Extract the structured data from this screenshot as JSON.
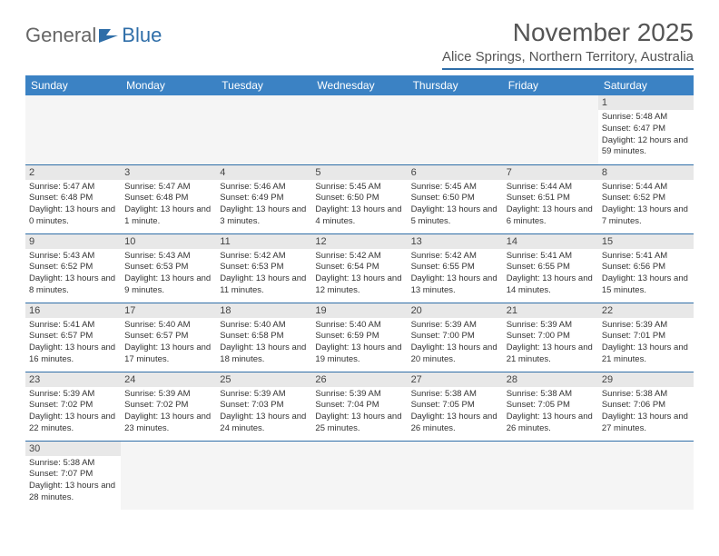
{
  "brand": {
    "part1": "General",
    "part2": "Blue"
  },
  "title": "November 2025",
  "location": "Alice Springs, Northern Territory, Australia",
  "colors": {
    "header_bg": "#3b82c4",
    "header_text": "#ffffff",
    "rule": "#2f6ea8",
    "daybar": "#e8e8e8",
    "text": "#333333",
    "title": "#555555"
  },
  "weekdays": [
    "Sunday",
    "Monday",
    "Tuesday",
    "Wednesday",
    "Thursday",
    "Friday",
    "Saturday"
  ],
  "layout": {
    "first_weekday_index": 6,
    "days_in_month": 30,
    "weeks": 6
  },
  "days": {
    "1": {
      "sunrise": "5:48 AM",
      "sunset": "6:47 PM",
      "daylight": "12 hours and 59 minutes."
    },
    "2": {
      "sunrise": "5:47 AM",
      "sunset": "6:48 PM",
      "daylight": "13 hours and 0 minutes."
    },
    "3": {
      "sunrise": "5:47 AM",
      "sunset": "6:48 PM",
      "daylight": "13 hours and 1 minute."
    },
    "4": {
      "sunrise": "5:46 AM",
      "sunset": "6:49 PM",
      "daylight": "13 hours and 3 minutes."
    },
    "5": {
      "sunrise": "5:45 AM",
      "sunset": "6:50 PM",
      "daylight": "13 hours and 4 minutes."
    },
    "6": {
      "sunrise": "5:45 AM",
      "sunset": "6:50 PM",
      "daylight": "13 hours and 5 minutes."
    },
    "7": {
      "sunrise": "5:44 AM",
      "sunset": "6:51 PM",
      "daylight": "13 hours and 6 minutes."
    },
    "8": {
      "sunrise": "5:44 AM",
      "sunset": "6:52 PM",
      "daylight": "13 hours and 7 minutes."
    },
    "9": {
      "sunrise": "5:43 AM",
      "sunset": "6:52 PM",
      "daylight": "13 hours and 8 minutes."
    },
    "10": {
      "sunrise": "5:43 AM",
      "sunset": "6:53 PM",
      "daylight": "13 hours and 9 minutes."
    },
    "11": {
      "sunrise": "5:42 AM",
      "sunset": "6:53 PM",
      "daylight": "13 hours and 11 minutes."
    },
    "12": {
      "sunrise": "5:42 AM",
      "sunset": "6:54 PM",
      "daylight": "13 hours and 12 minutes."
    },
    "13": {
      "sunrise": "5:42 AM",
      "sunset": "6:55 PM",
      "daylight": "13 hours and 13 minutes."
    },
    "14": {
      "sunrise": "5:41 AM",
      "sunset": "6:55 PM",
      "daylight": "13 hours and 14 minutes."
    },
    "15": {
      "sunrise": "5:41 AM",
      "sunset": "6:56 PM",
      "daylight": "13 hours and 15 minutes."
    },
    "16": {
      "sunrise": "5:41 AM",
      "sunset": "6:57 PM",
      "daylight": "13 hours and 16 minutes."
    },
    "17": {
      "sunrise": "5:40 AM",
      "sunset": "6:57 PM",
      "daylight": "13 hours and 17 minutes."
    },
    "18": {
      "sunrise": "5:40 AM",
      "sunset": "6:58 PM",
      "daylight": "13 hours and 18 minutes."
    },
    "19": {
      "sunrise": "5:40 AM",
      "sunset": "6:59 PM",
      "daylight": "13 hours and 19 minutes."
    },
    "20": {
      "sunrise": "5:39 AM",
      "sunset": "7:00 PM",
      "daylight": "13 hours and 20 minutes."
    },
    "21": {
      "sunrise": "5:39 AM",
      "sunset": "7:00 PM",
      "daylight": "13 hours and 21 minutes."
    },
    "22": {
      "sunrise": "5:39 AM",
      "sunset": "7:01 PM",
      "daylight": "13 hours and 21 minutes."
    },
    "23": {
      "sunrise": "5:39 AM",
      "sunset": "7:02 PM",
      "daylight": "13 hours and 22 minutes."
    },
    "24": {
      "sunrise": "5:39 AM",
      "sunset": "7:02 PM",
      "daylight": "13 hours and 23 minutes."
    },
    "25": {
      "sunrise": "5:39 AM",
      "sunset": "7:03 PM",
      "daylight": "13 hours and 24 minutes."
    },
    "26": {
      "sunrise": "5:39 AM",
      "sunset": "7:04 PM",
      "daylight": "13 hours and 25 minutes."
    },
    "27": {
      "sunrise": "5:38 AM",
      "sunset": "7:05 PM",
      "daylight": "13 hours and 26 minutes."
    },
    "28": {
      "sunrise": "5:38 AM",
      "sunset": "7:05 PM",
      "daylight": "13 hours and 26 minutes."
    },
    "29": {
      "sunrise": "5:38 AM",
      "sunset": "7:06 PM",
      "daylight": "13 hours and 27 minutes."
    },
    "30": {
      "sunrise": "5:38 AM",
      "sunset": "7:07 PM",
      "daylight": "13 hours and 28 minutes."
    }
  },
  "labels": {
    "sunrise": "Sunrise:",
    "sunset": "Sunset:",
    "daylight": "Daylight:"
  }
}
